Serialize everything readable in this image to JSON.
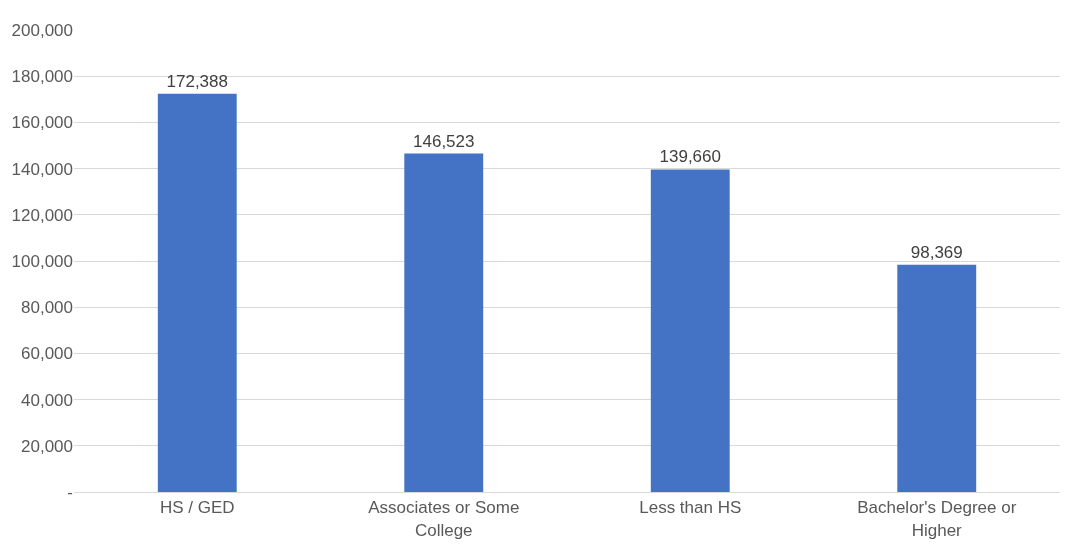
{
  "chart_data": {
    "type": "bar",
    "categories": [
      "HS / GED",
      "Associates or Some College",
      "Less than HS",
      "Bachelor's Degree or Higher"
    ],
    "values": [
      172388,
      146523,
      139660,
      98369
    ],
    "color": "#4472c4",
    "ylim": [
      0,
      200000
    ],
    "yticks": [
      {
        "value": 0,
        "label": "-"
      },
      {
        "value": 20000,
        "label": "20,000"
      },
      {
        "value": 40000,
        "label": "40,000"
      },
      {
        "value": 60000,
        "label": "60,000"
      },
      {
        "value": 80000,
        "label": "80,000"
      },
      {
        "value": 100000,
        "label": "100,000"
      },
      {
        "value": 120000,
        "label": "120,000"
      },
      {
        "value": 140000,
        "label": "140,000"
      },
      {
        "value": 160000,
        "label": "160,000"
      },
      {
        "value": 180000,
        "label": "180,000"
      },
      {
        "value": 200000,
        "label": "200,000"
      }
    ],
    "grid": "y",
    "value_labels": [
      "172,388",
      "146,523",
      "139,660",
      "98,369"
    ]
  }
}
